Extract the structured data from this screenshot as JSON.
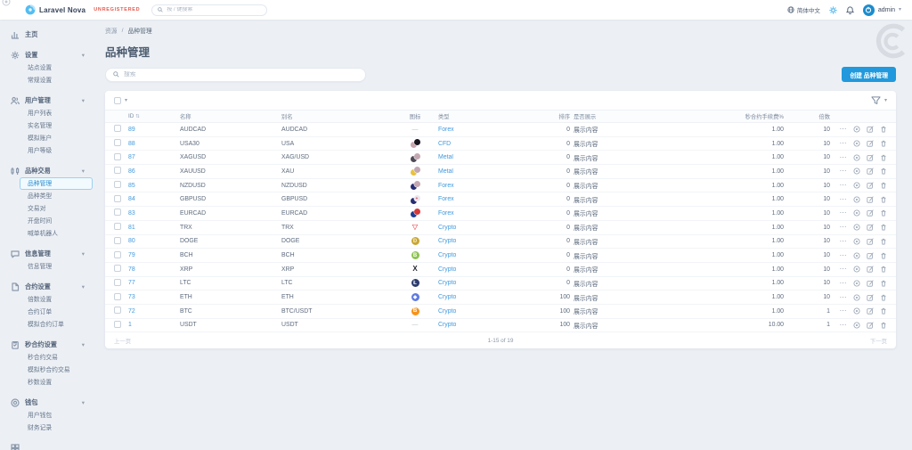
{
  "colors": {
    "accent": "#2199dc",
    "link": "#4099de",
    "unregistered": "#e8594c"
  },
  "topbar": {
    "brand": "Laravel Nova",
    "unregistered": "UNREGISTERED",
    "search_placeholder": "按 / 键搜索",
    "language": "简体中文",
    "user": "admin",
    "icons": [
      "globe-icon",
      "sun-icon",
      "bell-icon",
      "user-avatar"
    ]
  },
  "sidebar": {
    "sections": [
      {
        "label": "主页",
        "icon": "bar-chart-icon",
        "items": []
      },
      {
        "label": "设置",
        "icon": "gear-icon",
        "items": [
          "站点设置",
          "常规设置"
        ]
      },
      {
        "label": "用户管理",
        "icon": "users-icon",
        "items": [
          "用户列表",
          "实名管理",
          "模拟账户",
          "用户等级"
        ]
      },
      {
        "label": "品种交易",
        "icon": "candlestick-icon",
        "items": [
          "品种管理",
          "品种类型",
          "交易对",
          "开盘时间",
          "喊单机器人"
        ],
        "active": "品种管理"
      },
      {
        "label": "信息管理",
        "icon": "chat-icon",
        "items": [
          "信息管理"
        ]
      },
      {
        "label": "合约设置",
        "icon": "document-icon",
        "items": [
          "倍数设置",
          "合约订单",
          "模拟合约订单"
        ]
      },
      {
        "label": "秒合约设置",
        "icon": "clipboard-icon",
        "items": [
          "秒合约交易",
          "模拟秒合约交易",
          "秒数设置"
        ]
      },
      {
        "label": "钱包",
        "icon": "coin-icon",
        "items": [
          "用户钱包",
          "财务记录"
        ]
      },
      {
        "label": "",
        "icon": "grid-icon",
        "items": []
      }
    ]
  },
  "main": {
    "breadcrumb_root": "资源",
    "breadcrumb_sep": "/",
    "breadcrumb_page": "品种管理",
    "title": "品种管理",
    "search_placeholder": "搜索",
    "create_button": "创建 品种管理"
  },
  "table": {
    "columns": [
      "ID",
      "名称",
      "别名",
      "图标",
      "类型",
      "排序",
      "是否展示",
      "秒合约手续费%",
      "倍数"
    ],
    "row_actions": [
      "more-icon",
      "view-icon",
      "edit-icon",
      "delete-icon"
    ],
    "rows": [
      {
        "id": "89",
        "name": "AUDCAD",
        "alias": "AUDCAD",
        "icon": null,
        "type": "Forex",
        "sort": "0",
        "show": "展示内容",
        "fee": "1.00",
        "multiple": "10"
      },
      {
        "id": "88",
        "name": "USA30",
        "alias": "USA",
        "icon": {
          "pair": {
            "back": "#c9a7ae",
            "front": "#17141f"
          }
        },
        "type": "CFD",
        "sort": "0",
        "show": "展示内容",
        "fee": "1.00",
        "multiple": "10"
      },
      {
        "id": "87",
        "name": "XAGUSD",
        "alias": "XAG/USD",
        "icon": {
          "pair": {
            "back": "#4e4a55",
            "front": "#c3a8b2"
          }
        },
        "type": "Metal",
        "sort": "0",
        "show": "展示内容",
        "fee": "1.00",
        "multiple": "10"
      },
      {
        "id": "86",
        "name": "XAUUSD",
        "alias": "XAU",
        "icon": {
          "pair": {
            "back": "#e7c33f",
            "front": "#c3a8b2"
          }
        },
        "type": "Metal",
        "sort": "0",
        "show": "展示内容",
        "fee": "1.00",
        "multiple": "10"
      },
      {
        "id": "85",
        "name": "NZDUSD",
        "alias": "NZDUSD",
        "icon": {
          "pair": {
            "back": "#262d72",
            "front": "#c3a8b2"
          }
        },
        "type": "Forex",
        "sort": "0",
        "show": "展示内容",
        "fee": "1.00",
        "multiple": "10"
      },
      {
        "id": "84",
        "name": "GBPUSD",
        "alias": "GBPUSD",
        "icon": {
          "pair": {
            "back": "#262d72",
            "front": "#ece6ee",
            "glyph": "+",
            "glyph_color": "#cf2b36"
          }
        },
        "type": "Forex",
        "sort": "0",
        "show": "展示内容",
        "fee": "1.00",
        "multiple": "10"
      },
      {
        "id": "83",
        "name": "EURCAD",
        "alias": "EURCAD",
        "icon": {
          "pair": {
            "back": "#1e3e92",
            "front": "#d83a3a"
          }
        },
        "type": "Forex",
        "sort": "0",
        "show": "展示内容",
        "fee": "1.00",
        "multiple": "10"
      },
      {
        "id": "81",
        "name": "TRX",
        "alias": "TRX",
        "icon": {
          "coin": {
            "bg": "transparent",
            "fg": "#e50915",
            "glyph": "▽",
            "flat": true
          }
        },
        "type": "Crypto",
        "sort": "0",
        "show": "展示内容",
        "fee": "1.00",
        "multiple": "10"
      },
      {
        "id": "80",
        "name": "DOGE",
        "alias": "DOGE",
        "icon": {
          "coin": {
            "bg": "#c8a634",
            "fg": "#f7ecc0",
            "glyph": "Ð"
          }
        },
        "type": "Crypto",
        "sort": "0",
        "show": "展示内容",
        "fee": "1.00",
        "multiple": "10"
      },
      {
        "id": "79",
        "name": "BCH",
        "alias": "BCH",
        "icon": {
          "coin": {
            "bg": "#8dc351",
            "fg": "#ffffff",
            "glyph": "B"
          }
        },
        "type": "Crypto",
        "sort": "0",
        "show": "展示内容",
        "fee": "1.00",
        "multiple": "10"
      },
      {
        "id": "78",
        "name": "XRP",
        "alias": "XRP",
        "icon": {
          "coin": {
            "bg": "transparent",
            "fg": "#23292f",
            "glyph": "X",
            "flat": true
          }
        },
        "type": "Crypto",
        "sort": "0",
        "show": "展示内容",
        "fee": "1.00",
        "multiple": "10"
      },
      {
        "id": "77",
        "name": "LTC",
        "alias": "LTC",
        "icon": {
          "coin": {
            "bg": "#2c3c6e",
            "fg": "#ffffff",
            "glyph": "Ł"
          }
        },
        "type": "Crypto",
        "sort": "0",
        "show": "展示内容",
        "fee": "1.00",
        "multiple": "10"
      },
      {
        "id": "73",
        "name": "ETH",
        "alias": "ETH",
        "icon": {
          "coin": {
            "bg": "#5f7ae0",
            "fg": "#ffffff",
            "glyph": "◆"
          }
        },
        "type": "Crypto",
        "sort": "100",
        "show": "展示内容",
        "fee": "1.00",
        "multiple": "10"
      },
      {
        "id": "72",
        "name": "BTC",
        "alias": "BTC/USDT",
        "icon": {
          "coin": {
            "bg": "#f7931a",
            "fg": "#ffffff",
            "glyph": "B"
          }
        },
        "type": "Crypto",
        "sort": "100",
        "show": "展示内容",
        "fee": "1.00",
        "multiple": "1"
      },
      {
        "id": "1",
        "name": "USDT",
        "alias": "USDT",
        "icon": null,
        "type": "Crypto",
        "sort": "100",
        "show": "展示内容",
        "fee": "10.00",
        "multiple": "1"
      }
    ],
    "pagination": {
      "prev": "上一页",
      "info": "1-15 of 19",
      "next": "下一页"
    }
  }
}
